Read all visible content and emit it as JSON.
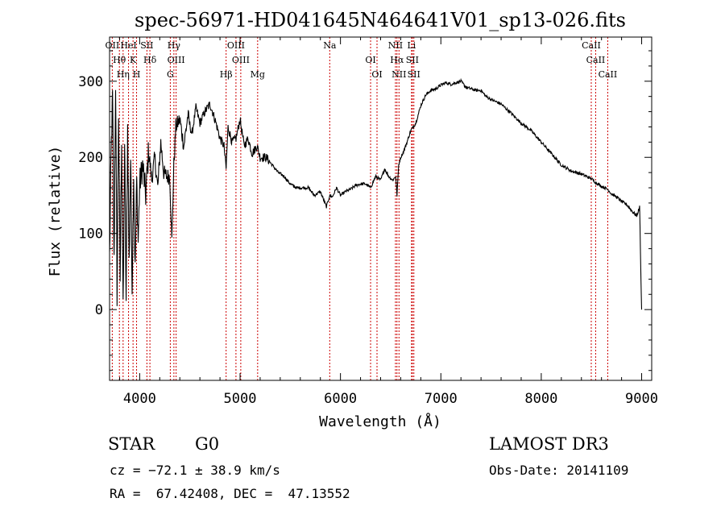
{
  "chart_data": {
    "type": "line",
    "title": "spec-56971-HD041645N464641V01_sp13-026.fits",
    "xlabel": "Wavelength (Å)",
    "ylabel": "Flux (relative)",
    "xlim": [
      3700,
      9100
    ],
    "ylim": [
      -93,
      358
    ],
    "xticks": [
      4000,
      5000,
      6000,
      7000,
      8000,
      9000
    ],
    "yticks": [
      0,
      100,
      200,
      300
    ],
    "xtick_labels": [
      "4000",
      "5000",
      "6000",
      "7000",
      "8000",
      "9000"
    ],
    "ytick_labels": [
      "0",
      "100",
      "200",
      "300"
    ],
    "series": [
      {
        "name": "flux",
        "x": [
          3700,
          3715,
          3730,
          3745,
          3760,
          3775,
          3790,
          3805,
          3820,
          3835,
          3850,
          3865,
          3880,
          3895,
          3910,
          3925,
          3940,
          3955,
          3970,
          3985,
          4000,
          4030,
          4060,
          4090,
          4120,
          4150,
          4180,
          4210,
          4240,
          4270,
          4300,
          4320,
          4340,
          4360,
          4400,
          4440,
          4480,
          4520,
          4560,
          4600,
          4650,
          4700,
          4750,
          4800,
          4840,
          4861,
          4880,
          4920,
          4960,
          5000,
          5040,
          5080,
          5120,
          5170,
          5200,
          5260,
          5320,
          5380,
          5440,
          5500,
          5560,
          5620,
          5680,
          5740,
          5800,
          5860,
          5893,
          5920,
          5960,
          6000,
          6050,
          6100,
          6150,
          6200,
          6250,
          6300,
          6350,
          6400,
          6440,
          6480,
          6520,
          6550,
          6563,
          6580,
          6600,
          6620,
          6650,
          6700,
          6750,
          6800,
          6850,
          6900,
          6950,
          7000,
          7050,
          7100,
          7150,
          7200,
          7250,
          7300,
          7350,
          7400,
          7450,
          7500,
          7600,
          7700,
          7800,
          7900,
          8000,
          8100,
          8200,
          8300,
          8400,
          8498,
          8542,
          8600,
          8662,
          8700,
          8750,
          8800,
          8850,
          8900,
          8950,
          8980,
          8990,
          9000
        ],
        "y": [
          70,
          200,
          280,
          60,
          300,
          20,
          260,
          40,
          230,
          -5,
          220,
          10,
          240,
          60,
          200,
          30,
          180,
          50,
          170,
          90,
          165,
          190,
          150,
          210,
          170,
          200,
          160,
          220,
          180,
          175,
          175,
          90,
          190,
          240,
          250,
          215,
          255,
          230,
          265,
          245,
          260,
          270,
          250,
          225,
          215,
          185,
          240,
          220,
          225,
          250,
          215,
          225,
          205,
          215,
          200,
          200,
          190,
          180,
          175,
          165,
          160,
          160,
          160,
          150,
          155,
          135,
          150,
          148,
          160,
          150,
          155,
          158,
          163,
          165,
          165,
          160,
          175,
          170,
          185,
          175,
          170,
          175,
          150,
          190,
          200,
          205,
          215,
          235,
          245,
          268,
          282,
          288,
          290,
          295,
          298,
          296,
          298,
          300,
          292,
          290,
          288,
          288,
          280,
          276,
          270,
          258,
          245,
          235,
          220,
          205,
          190,
          182,
          178,
          172,
          167,
          162,
          158,
          152,
          148,
          142,
          138,
          130,
          123,
          135,
          60,
          0
        ]
      }
    ],
    "lines": [
      {
        "name": "OII",
        "wavelength": 3727
      },
      {
        "name": "Hθ",
        "wavelength": 3798
      },
      {
        "name": "Hη",
        "wavelength": 3835
      },
      {
        "name": "HeI",
        "wavelength": 3889
      },
      {
        "name": "K",
        "wavelength": 3934
      },
      {
        "name": "H",
        "wavelength": 3969
      },
      {
        "name": "SII",
        "wavelength": 4072
      },
      {
        "name": "Hδ",
        "wavelength": 4102
      },
      {
        "name": "G",
        "wavelength": 4305
      },
      {
        "name": "Hγ",
        "wavelength": 4341
      },
      {
        "name": "OIII",
        "wavelength": 4363
      },
      {
        "name": "Hβ",
        "wavelength": 4861
      },
      {
        "name": "OIII",
        "wavelength": 4959
      },
      {
        "name": "OIII",
        "wavelength": 5007
      },
      {
        "name": "Mg",
        "wavelength": 5175
      },
      {
        "name": "Na",
        "wavelength": 5893
      },
      {
        "name": "OI",
        "wavelength": 6300
      },
      {
        "name": "OI",
        "wavelength": 6364
      },
      {
        "name": "NII",
        "wavelength": 6548
      },
      {
        "name": "Hα",
        "wavelength": 6563
      },
      {
        "name": "NII",
        "wavelength": 6583
      },
      {
        "name": "Li",
        "wavelength": 6708
      },
      {
        "name": "SII",
        "wavelength": 6716
      },
      {
        "name": "SII",
        "wavelength": 6731
      },
      {
        "name": "CaII",
        "wavelength": 8498
      },
      {
        "name": "CaII",
        "wavelength": 8542
      },
      {
        "name": "CaII",
        "wavelength": 8662
      }
    ],
    "line_color": "#cc0000"
  },
  "info": {
    "class_label": "STAR",
    "subclass": "G0",
    "cz": "cz = −72.1 ± 38.9 km/s",
    "coords": "RA =  67.42408, DEC =  47.13552",
    "survey": "LAMOST DR3",
    "obs_date": "Obs-Date: 20141109"
  }
}
